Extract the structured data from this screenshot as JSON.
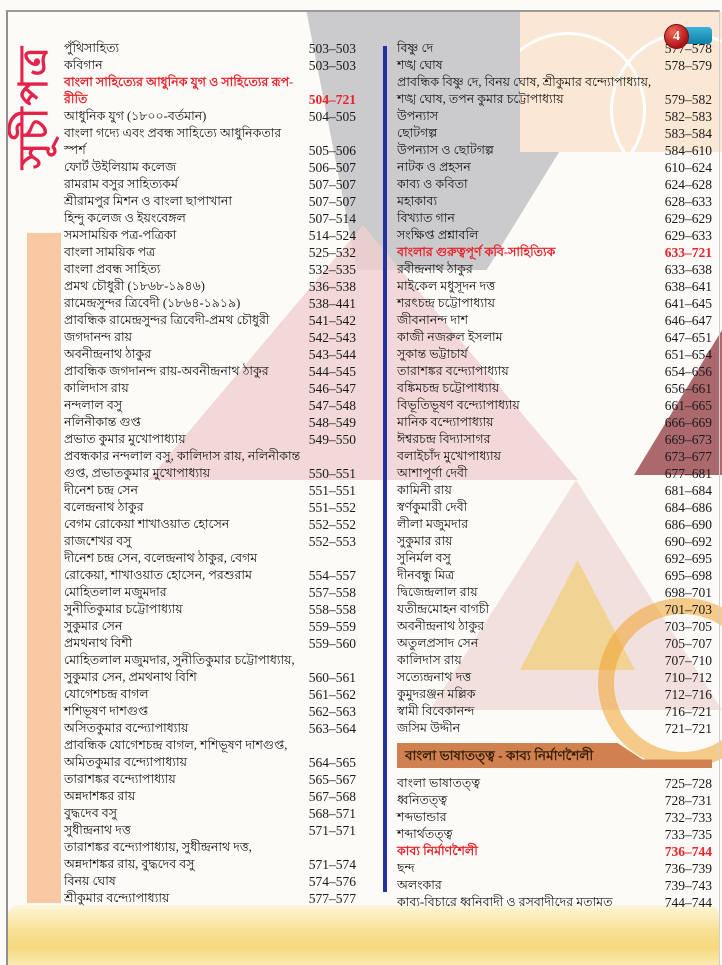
{
  "page": {
    "sidebar_label": "সূচীপত্র",
    "page_badge": "4"
  },
  "colors": {
    "heading_red": "#e8232b",
    "sidebar_red": "#e4234a",
    "divider_blue": "#2431a3",
    "banner_orange": "#d0814f",
    "sidebar_bar_peach": "#f8c9a2",
    "badge_blue": "#1c94bc",
    "badge_red": "#c51e22",
    "bottom_band_yellow": "#f6d87e"
  },
  "columns": {
    "left": [
      {
        "style": "item",
        "label": "পুঁথিসাহিত্য",
        "pages": "503–503"
      },
      {
        "style": "item",
        "label": "কবিগান",
        "pages": "503–503"
      },
      {
        "style": "heading",
        "label": "বাংলা সাহিত্যের আধুনিক যুগ ও সাহিত্যের রূপ-রীতি",
        "pages": "504–721"
      },
      {
        "style": "item",
        "label": "আধুনিক যুগ (১৮০০-বর্তমান)",
        "pages": "504–505"
      },
      {
        "style": "item",
        "label": "বাংলা গদ্যে এবং প্রবন্ধ সাহিত্যে আধুনিকতার স্পর্শ",
        "pages": "505–506"
      },
      {
        "style": "item",
        "label": "ফোর্ট উইলিয়াম কলেজ",
        "pages": "506–507"
      },
      {
        "style": "item",
        "label": "রামরাম বসুর সাহিত্যকর্ম",
        "pages": "507–507"
      },
      {
        "style": "item",
        "label": "শ্রীরামপুর মিশন ও বাংলা ছাপাখানা",
        "pages": "507–507"
      },
      {
        "style": "item",
        "label": "হিন্দু কলেজ ও ইয়ংবেঙ্গল",
        "pages": "507–514"
      },
      {
        "style": "item",
        "label": "সমসাময়িক পত্র-পত্রিকা",
        "pages": "514–524"
      },
      {
        "style": "item",
        "label": "বাংলা সাময়িক পত্র",
        "pages": "525–532"
      },
      {
        "style": "item",
        "label": "বাংলা প্রবন্ধ সাহিত্য",
        "pages": "532–535"
      },
      {
        "style": "item",
        "label": "প্রমথ চৌধুরী (১৮৬৮-১৯৪৬)",
        "pages": "536–538"
      },
      {
        "style": "item",
        "label": "রামেন্দ্রসুন্দর ত্রিবেদী (১৮৬৪-১৯১৯)",
        "pages": "538–441"
      },
      {
        "style": "item",
        "label": "প্রাবন্ধিক রামেন্দ্রসুন্দর ত্রিবেদী-প্রমথ চৌধুরী",
        "pages": "541–542"
      },
      {
        "style": "item",
        "label": "জগদানন্দ রায়",
        "pages": "542–543"
      },
      {
        "style": "item",
        "label": "অবনীন্দ্রনাথ ঠাকুর",
        "pages": "543–544"
      },
      {
        "style": "item",
        "label": "প্রাবন্ধিক জগদানন্দ রায়-অবনীন্দ্রনাথ ঠাকুর",
        "pages": "544–545"
      },
      {
        "style": "item",
        "label": "কালিদাস রায়",
        "pages": "546–547"
      },
      {
        "style": "item",
        "label": "নন্দলাল বসু",
        "pages": "547–548"
      },
      {
        "style": "item",
        "label": "নলিনীকান্ত গুপ্ত",
        "pages": "548–549"
      },
      {
        "style": "item",
        "label": "প্রভাত কুমার মুখোপাধ্যায়",
        "pages": "549–550"
      },
      {
        "style": "item",
        "label": "প্রবন্ধকার নন্দলাল বসু, কালিদাস রায়, নলিনীকান্ত গুপ্ত, প্রভাতকুমার মুখোপাধ্যায়",
        "pages": "550–551"
      },
      {
        "style": "item",
        "label": "দীনেশ চন্দ্র সেন",
        "pages": "551–551"
      },
      {
        "style": "item",
        "label": "বলেন্দ্রনাথ ঠাকুর",
        "pages": "551–552"
      },
      {
        "style": "item",
        "label": "বেগম রোকেয়া শাখাওয়াত হোসেন",
        "pages": "552–552"
      },
      {
        "style": "item",
        "label": "রাজশেখর বসু",
        "pages": "552–553"
      },
      {
        "style": "item",
        "label": "দীনেশ চন্দ্র সেন, বলেন্দ্রনাথ ঠাকুর, বেগম রোকেয়া, শাখাওয়াত হোসেন, পরশুরাম",
        "pages": "554–557"
      },
      {
        "style": "item",
        "label": "মোহিতলাল মজুমদার",
        "pages": "557–558"
      },
      {
        "style": "item",
        "label": "সুনীতিকুমার চট্টোপাধ্যায়",
        "pages": "558–558"
      },
      {
        "style": "item",
        "label": "সুকুমার সেন",
        "pages": "559–559"
      },
      {
        "style": "item",
        "label": "প্রমথনাথ বিশী",
        "pages": "559–560"
      },
      {
        "style": "item",
        "label": "মোহিতলাল মজুমদার, সুনীতিকুমার চট্টোপাধ্যায়, সুকুমার সেন, প্রমথনাথ বিশি",
        "pages": "560–561"
      },
      {
        "style": "item",
        "label": "যোগেশচন্দ্র বাগল",
        "pages": "561–562"
      },
      {
        "style": "item",
        "label": "শশিভূষণ দাশগুপ্ত",
        "pages": "562–563"
      },
      {
        "style": "item",
        "label": "অসিতকুমার বন্দ্যোপাধ্যায়",
        "pages": "563–564"
      },
      {
        "style": "item",
        "label": "প্রাবন্ধিক যোগেশচন্দ্র বাগল, শশিভূষণ দাশগুপ্ত, অমিতকুমার বন্দ্যোপাধ্যায়",
        "pages": "564–565"
      },
      {
        "style": "item",
        "label": "তারাশঙ্কর বন্দ্যোপাধ্যায়",
        "pages": "565–567"
      },
      {
        "style": "item",
        "label": "অন্নদাশঙ্কর রায়",
        "pages": "567–568"
      },
      {
        "style": "item",
        "label": "বুদ্ধদেব বসু",
        "pages": "568–571"
      },
      {
        "style": "item",
        "label": "সুধীন্দ্রনাথ দত্ত",
        "pages": "571–571"
      },
      {
        "style": "item",
        "label": "তারাশঙ্কর বন্দ্যোপাধ্যায়, সুধীন্দ্রনাথ দত্ত, অন্নদাশঙ্কর রায়, বুদ্ধদেব বসু",
        "pages": "571–574"
      },
      {
        "style": "item",
        "label": "বিনয় ঘোষ",
        "pages": "574–576"
      },
      {
        "style": "item",
        "label": "শ্রীকুমার বন্দ্যোপাধ্যায়",
        "pages": "577–577"
      }
    ],
    "right": [
      {
        "style": "item",
        "label": "বিষ্ণু দে",
        "pages": "577–578"
      },
      {
        "style": "item",
        "label": "শঙ্খ ঘোষ",
        "pages": "578–579"
      },
      {
        "style": "item",
        "label": "প্রাবন্ধিক বিষ্ণু দে, বিনয় ঘোষ, শ্রীকুমার বন্দ্যোপাধ্যায়, শঙ্খ ঘোষ, তপন কুমার চট্টোপাধ্যায়",
        "pages": "579–582"
      },
      {
        "style": "item",
        "label": "উপন্যাস",
        "pages": "582–583"
      },
      {
        "style": "item",
        "label": "ছোটগল্প",
        "pages": "583–584"
      },
      {
        "style": "item",
        "label": "উপন্যাস ও ছোটগল্প",
        "pages": "584–610"
      },
      {
        "style": "item",
        "label": "নাটক ও প্রহসন",
        "pages": "610–624"
      },
      {
        "style": "item",
        "label": "কাব্য ও কবিতা",
        "pages": "624–628"
      },
      {
        "style": "item",
        "label": "মহাকাব্য",
        "pages": "628–633"
      },
      {
        "style": "item",
        "label": "বিখ্যাত গান",
        "pages": "629–629"
      },
      {
        "style": "item",
        "label": "সংক্ষিপ্ত প্রশ্নাবলি",
        "pages": "629–633"
      },
      {
        "style": "heading",
        "label": "বাংলার গুরুত্বপূর্ণ কবি-সাহিত্যিক",
        "pages": "633–721"
      },
      {
        "style": "item",
        "label": "রবীন্দ্রনাথ ঠাকুর",
        "pages": "633–638"
      },
      {
        "style": "item",
        "label": "মাইকেল মধুসূদন দত্ত",
        "pages": "638–641"
      },
      {
        "style": "item",
        "label": "শরৎচন্দ্র চট্টোপাধ্যায়",
        "pages": "641–645"
      },
      {
        "style": "item",
        "label": "জীবনানন্দ দাশ",
        "pages": "646–647"
      },
      {
        "style": "item",
        "label": "কাজী নজরুল ইসলাম",
        "pages": "647–651"
      },
      {
        "style": "item",
        "label": "সুকান্ত ভট্টাচার্য",
        "pages": "651–654"
      },
      {
        "style": "item",
        "label": "তারাশঙ্কর বন্দ্যোপাধ্যায়",
        "pages": "654–656"
      },
      {
        "style": "item",
        "label": "বঙ্কিমচন্দ্র চট্টোপাধ্যায়",
        "pages": "656–661"
      },
      {
        "style": "item",
        "label": "বিভূতিভূষণ বন্দ্যোপাধ্যায়",
        "pages": "661–665"
      },
      {
        "style": "item",
        "label": "মানিক বন্দ্যোপাধ্যায়",
        "pages": "666–669"
      },
      {
        "style": "item",
        "label": "ঈশ্বরচন্দ্র বিদ্যাসাগর",
        "pages": "669–673"
      },
      {
        "style": "item",
        "label": "বলাইচাঁদ মুখোপাধ্যায়",
        "pages": "673–677"
      },
      {
        "style": "item",
        "label": "আশাপূর্ণা দেবী",
        "pages": "677–681"
      },
      {
        "style": "item",
        "label": "কামিনী রায়",
        "pages": "681–684"
      },
      {
        "style": "item",
        "label": "স্বর্ণকুমারী দেবী",
        "pages": "684–686"
      },
      {
        "style": "item",
        "label": "লীলা মজুমদার",
        "pages": "686–690"
      },
      {
        "style": "item",
        "label": "সুকুমার রায়",
        "pages": "690–692"
      },
      {
        "style": "item",
        "label": "সুনির্মল বসু",
        "pages": "692–695"
      },
      {
        "style": "item",
        "label": "দীনবন্ধু মিত্র",
        "pages": "695–698"
      },
      {
        "style": "item",
        "label": "দ্বিজেন্দ্রলাল রায়",
        "pages": "698–701"
      },
      {
        "style": "item",
        "label": "যতীন্দ্রমোহন বাগচী",
        "pages": "701–703"
      },
      {
        "style": "item",
        "label": "অবনীন্দ্রনাথ ঠাকুর",
        "pages": "703–705"
      },
      {
        "style": "item",
        "label": "অতুলপ্রসাদ সেন",
        "pages": "705–707"
      },
      {
        "style": "item",
        "label": "কালিদাস রায়",
        "pages": "707–710"
      },
      {
        "style": "item",
        "label": "সত্যেন্দ্রনাথ দত্ত",
        "pages": "710–712"
      },
      {
        "style": "item",
        "label": "কুমুদরঞ্জন মল্লিক",
        "pages": "712–716"
      },
      {
        "style": "item",
        "label": "স্বামী বিবেকানন্দ",
        "pages": "716–721"
      },
      {
        "style": "item",
        "label": "জসিম উদ্দীন",
        "pages": "721–721"
      },
      {
        "style": "banner",
        "label": "বাংলা ভাষাতত্ত্ব - কাব্য নির্মাণশৈলী",
        "pages": ""
      },
      {
        "style": "item",
        "label": "বাংলা ভাষাতত্ত্ব",
        "pages": "725–728"
      },
      {
        "style": "item",
        "label": "ধ্বনিতত্ত্ব",
        "pages": "728–731"
      },
      {
        "style": "item",
        "label": "শব্দভান্ডার",
        "pages": "732–733"
      },
      {
        "style": "item",
        "label": "শব্দার্থতত্ত্ব",
        "pages": "733–735"
      },
      {
        "style": "heading",
        "label": "কাব্য নির্মাণশৈলী",
        "pages": "736–744"
      },
      {
        "style": "item",
        "label": "ছন্দ",
        "pages": "736–739"
      },
      {
        "style": "item",
        "label": "অলংকার",
        "pages": "739–743"
      },
      {
        "style": "item",
        "label": "কাব্য-বিচারে ধ্বনিবাদী ও রসবাদীদের মতামত",
        "pages": "744–744"
      }
    ]
  }
}
